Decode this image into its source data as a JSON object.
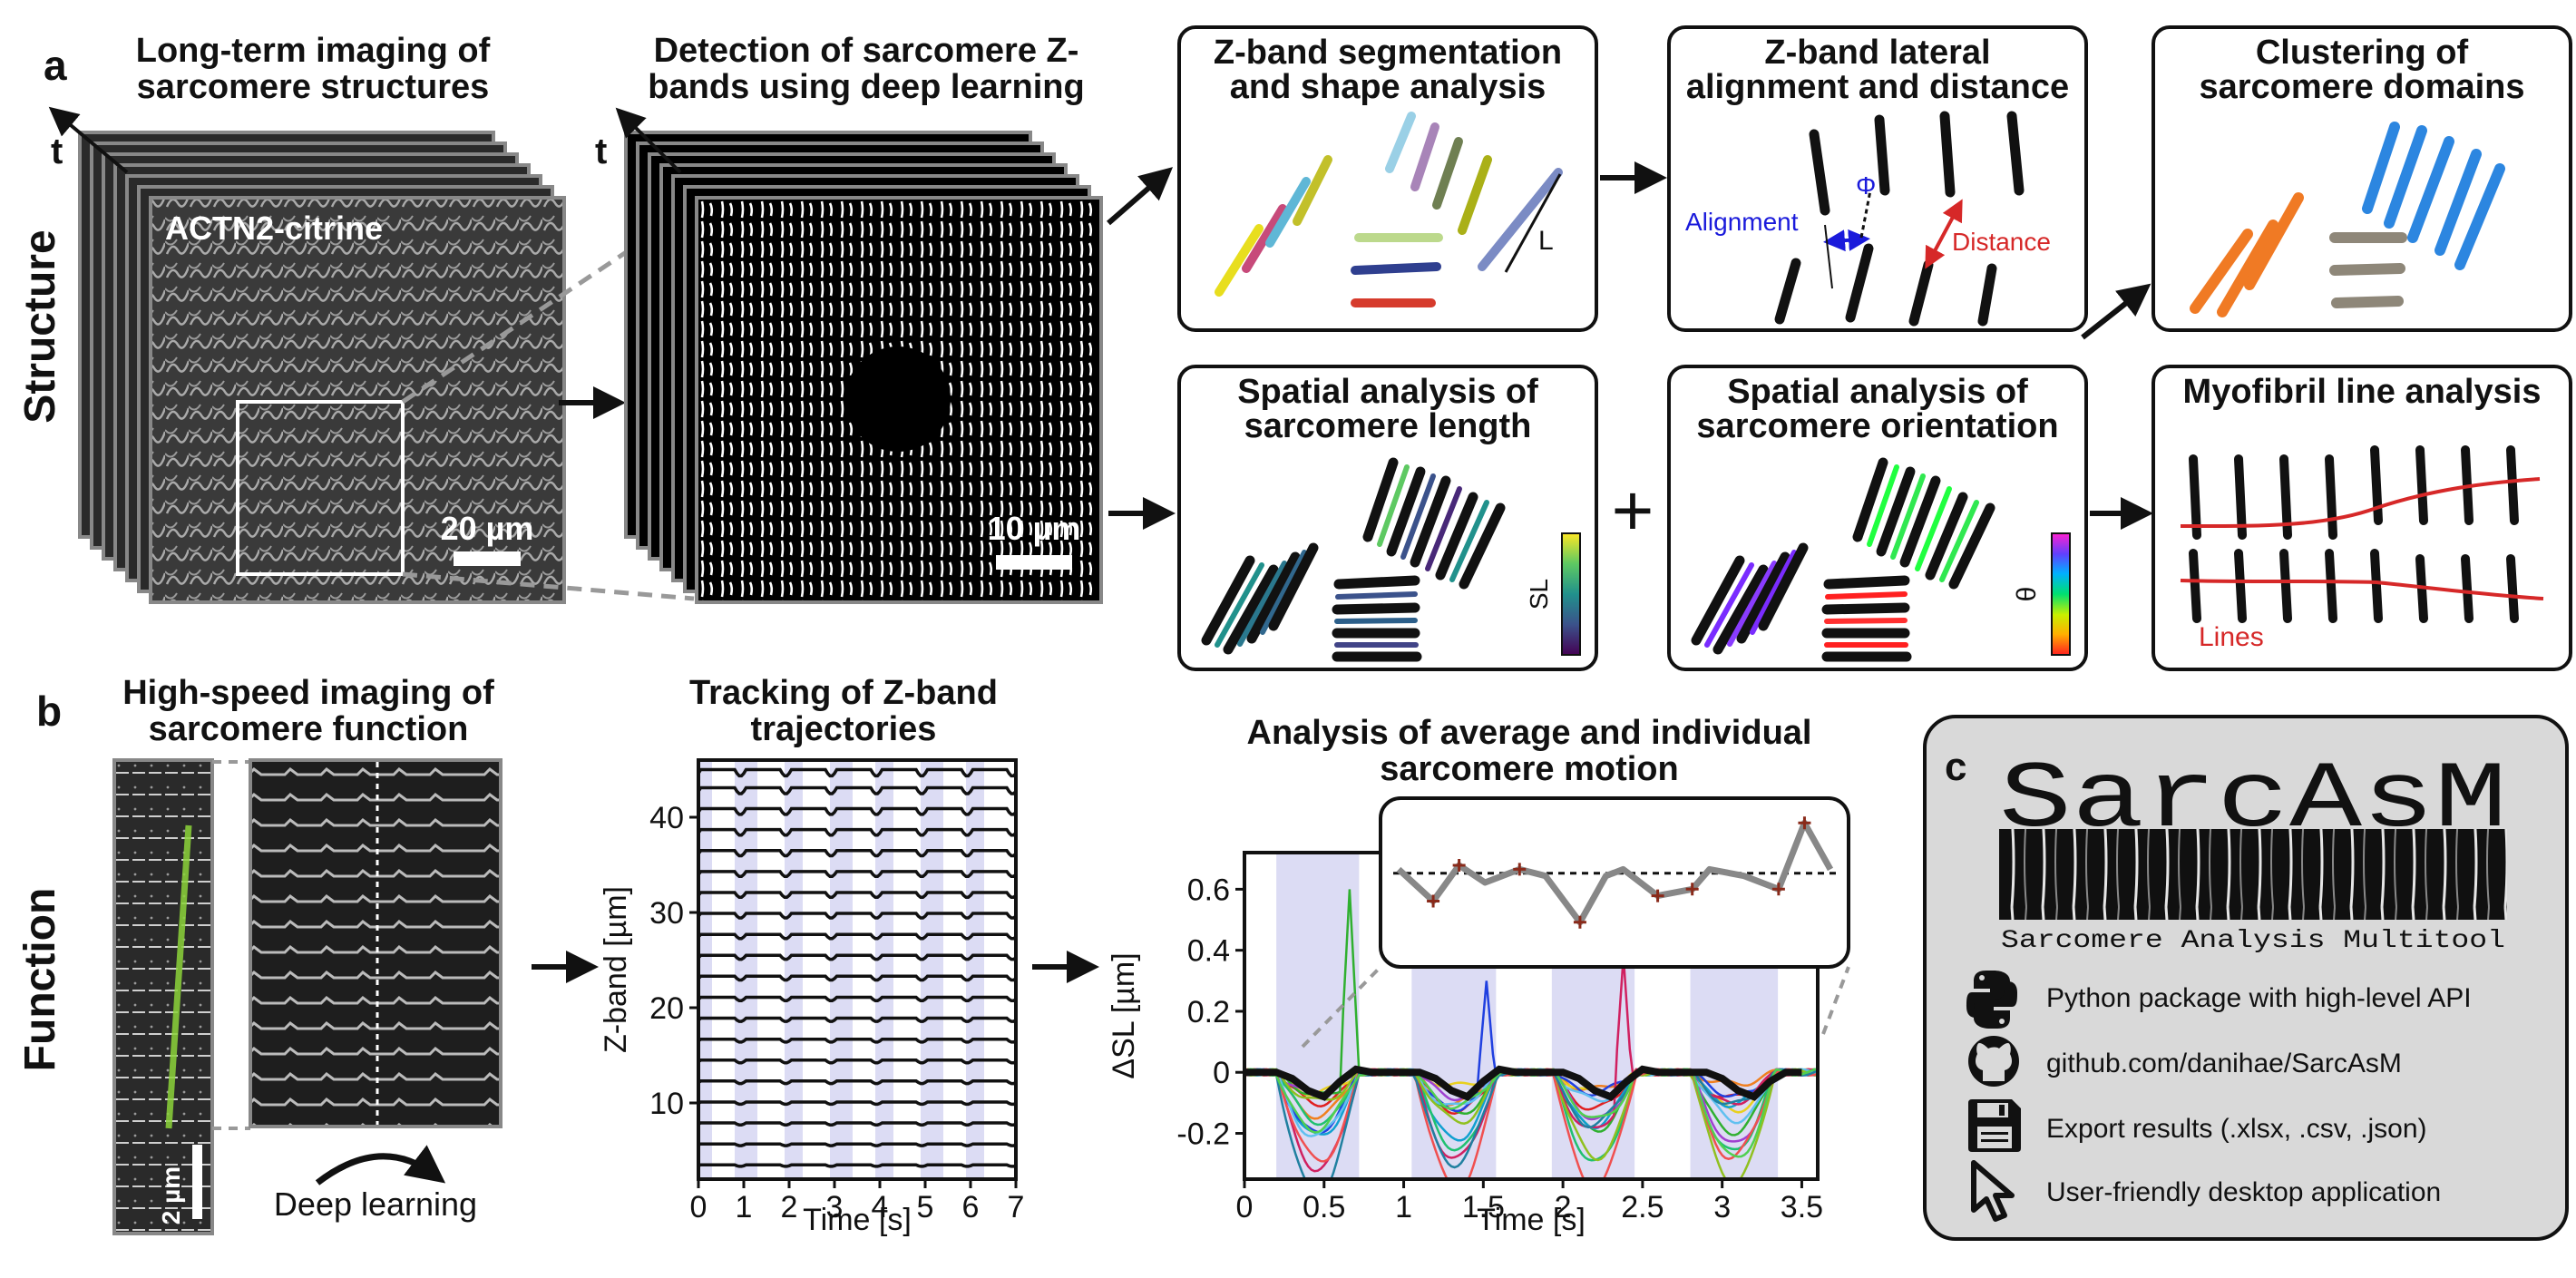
{
  "colors": {
    "accent_red": "#d62828",
    "accent_blue": "#1a1adb",
    "panel_gray": "#d9d9d9",
    "shade": "#dcdcf4",
    "segment_palette": [
      "#e8de1e",
      "#c74a7a",
      "#5fb7d6",
      "#c2c02a",
      "#9ad0e6",
      "#a884b8",
      "#6f7f52",
      "#aab017",
      "#7b8bc4",
      "#bcd98c",
      "#2f3f8f",
      "#d63b2c"
    ],
    "domain_orange": "#f07a24",
    "domain_blue": "#2c86e0",
    "domain_gray": "#8e8779"
  },
  "panel_a": {
    "letter": "a",
    "row_label": "Structure",
    "imaging": {
      "title": [
        "Long-term imaging of",
        "sarcomere structures"
      ],
      "axis": "t",
      "channel": "ACTN2-citrine",
      "scale": "20 µm"
    },
    "detection": {
      "title": [
        "Detection of sarcomere Z-",
        "bands using deep learning"
      ],
      "axis": "t",
      "scale": "10 µm"
    },
    "boxes": {
      "segmentation": {
        "title": [
          "Z-band segmentation",
          "and shape analysis"
        ],
        "label_L": "L"
      },
      "alignment": {
        "title": [
          "Z-band lateral",
          "alignment and distance"
        ],
        "label_alignment": "Alignment",
        "label_phi": "Φ",
        "label_distance": "Distance"
      },
      "clustering": {
        "title": [
          "Clustering of",
          "sarcomere domains"
        ]
      },
      "length": {
        "title": [
          "Spatial analysis of",
          "sarcomere length"
        ],
        "colorbar_label": "SL"
      },
      "orientation": {
        "title": [
          "Spatial analysis of",
          "sarcomere orientation"
        ],
        "colorbar_label": "θ"
      },
      "myofibril": {
        "title": [
          "Myofibril line analysis"
        ],
        "label_lines": "Lines"
      }
    },
    "plus": "+"
  },
  "panel_b": {
    "letter": "b",
    "row_label": "Function",
    "highspeed": {
      "title": [
        "High-speed imaging of",
        "sarcomere function"
      ],
      "scale": "2 µm",
      "caption": "Deep learning"
    },
    "tracking": {
      "title": [
        "Tracking of Z-band",
        "trajectories"
      ],
      "xlabel": "Time [s]",
      "ylabel": "Z-band [µm]",
      "xticks": [
        "0",
        "1",
        "2",
        "3",
        "4",
        "5",
        "6",
        "7"
      ],
      "yticks": [
        "10",
        "20",
        "30",
        "40"
      ]
    },
    "motion": {
      "title": [
        "Analysis of average and individual",
        "sarcomere motion"
      ],
      "xlabel": "Time [s]",
      "ylabel": "ΔSL [µm]",
      "xticks": [
        "0",
        "0.5",
        "1",
        "1.5",
        "2",
        "2.5",
        "3",
        "3.5"
      ],
      "yticks": [
        "-0.2",
        "0",
        "0.2",
        "0.4",
        "0.6"
      ]
    }
  },
  "panel_c": {
    "letter": "c",
    "logo": "SarcAsM",
    "subtitle": "Sarcomere Analysis Multitool",
    "features": [
      {
        "icon": "python-icon",
        "text": "Python package with high-level API"
      },
      {
        "icon": "github-icon",
        "text": "github.com/danihae/SarcAsM"
      },
      {
        "icon": "floppy-disk-icon",
        "text": "Export results (.xlsx, .csv, .json)"
      },
      {
        "icon": "cursor-icon",
        "text": "User-friendly desktop application"
      }
    ]
  },
  "chart_data": [
    {
      "type": "line",
      "title": "",
      "xlabel": "Time [s]",
      "ylabel": "Z-band [µm]",
      "xlim": [
        0,
        7
      ],
      "ylim": [
        2,
        46
      ],
      "series_count": 20,
      "series_offsets": [
        3.5,
        5.7,
        7.9,
        10.1,
        12.3,
        14.5,
        16.7,
        18.9,
        21.1,
        23.3,
        25.5,
        27.7,
        29.9,
        32.1,
        34.3,
        36.5,
        38.7,
        40.9,
        43.1,
        45.0
      ],
      "shaded_intervals": [
        [
          0,
          0.3
        ],
        [
          0.8,
          1.3
        ],
        [
          1.9,
          2.3
        ],
        [
          2.9,
          3.4
        ],
        [
          3.9,
          4.3
        ],
        [
          4.9,
          5.4
        ],
        [
          5.9,
          6.3
        ]
      ]
    },
    {
      "type": "line",
      "title": "",
      "xlabel": "Time [s]",
      "ylabel": "ΔSL [µm]",
      "xlim": [
        0,
        3.6
      ],
      "ylim": [
        -0.35,
        0.72
      ],
      "shaded_intervals": [
        [
          0.2,
          0.72
        ],
        [
          1.05,
          1.58
        ],
        [
          1.93,
          2.45
        ],
        [
          2.8,
          3.35
        ]
      ],
      "individual_series_count": 14,
      "average": {
        "x": [
          0,
          0.1,
          0.2,
          0.3,
          0.4,
          0.5,
          0.6,
          0.7,
          0.8,
          0.9,
          1.0,
          1.1,
          1.2,
          1.3,
          1.4,
          1.5,
          1.6,
          1.7,
          1.8,
          1.9,
          2.0,
          2.1,
          2.2,
          2.3,
          2.4,
          2.5,
          2.6,
          2.7,
          2.8,
          2.9,
          3.0,
          3.1,
          3.2,
          3.3,
          3.4,
          3.5
        ],
        "y": [
          0,
          0,
          0,
          -0.02,
          -0.06,
          -0.08,
          -0.03,
          0.01,
          0,
          0,
          0,
          0,
          -0.02,
          -0.06,
          -0.08,
          -0.03,
          0.01,
          0,
          0,
          0,
          0,
          -0.02,
          -0.06,
          -0.08,
          -0.03,
          0.01,
          0,
          0,
          0,
          0,
          -0.02,
          -0.06,
          -0.08,
          -0.03,
          0,
          0
        ]
      },
      "inset": {
        "x": [
          0,
          0.08,
          0.14,
          0.2,
          0.28,
          0.34,
          0.42,
          0.48,
          0.52,
          0.6,
          0.68,
          0.72,
          0.8,
          0.88,
          0.94,
          1.0
        ],
        "y": [
          0.6,
          0.36,
          0.63,
          0.5,
          0.6,
          0.55,
          0.2,
          0.55,
          0.6,
          0.4,
          0.45,
          0.6,
          0.55,
          0.45,
          0.95,
          0.6
        ],
        "reference_line": 0.57
      }
    }
  ]
}
